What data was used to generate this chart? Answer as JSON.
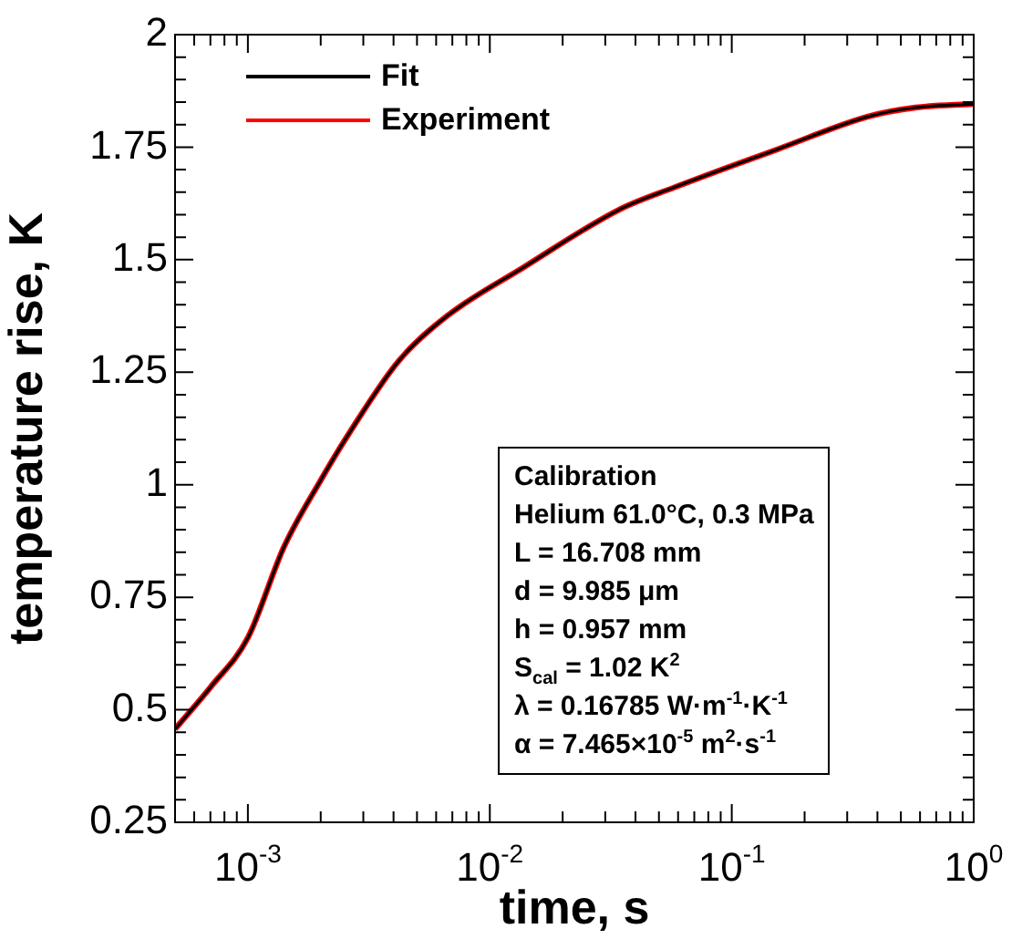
{
  "chart_data": {
    "type": "line",
    "xlabel": "time, s",
    "ylabel": "temperature rise, K",
    "log": "x",
    "grid": false,
    "legend": "top left",
    "line_style": "solid",
    "marker": "none",
    "x": [
      0.0005,
      0.0007,
      0.001,
      0.00141,
      0.002,
      0.00264,
      0.0042,
      0.0067,
      0.0137,
      0.0342,
      0.0575,
      0.154,
      0.366,
      0.574,
      1
    ],
    "series": [
      {
        "name": "Fit",
        "color": "#000000",
        "values": [
          0.457,
          0.55,
          0.66,
          0.862,
          1.01,
          1.117,
          1.275,
          1.376,
          1.482,
          1.611,
          1.66,
          1.745,
          1.818,
          1.838,
          1.846
        ]
      },
      {
        "name": "Experiment",
        "color": "#ff0000",
        "values": [
          0.457,
          0.55,
          0.66,
          0.862,
          1.01,
          1.117,
          1.275,
          1.376,
          1.482,
          1.611,
          1.66,
          1.745,
          1.818,
          1.838,
          1.846
        ]
      }
    ],
    "xlim": [
      0.0005,
      1
    ],
    "xticks": [
      {
        "value": 0.0006,
        "label": null
      },
      {
        "value": 0.0007,
        "label": null
      },
      {
        "value": 0.0008,
        "label": null
      },
      {
        "value": 0.0009,
        "label": null
      },
      {
        "value": 0.001,
        "label": "10$^{-3}$"
      },
      {
        "value": 0.002,
        "label": null
      },
      {
        "value": 0.003,
        "label": null
      },
      {
        "value": 0.004,
        "label": null
      },
      {
        "value": 0.005,
        "label": null
      },
      {
        "value": 0.006,
        "label": null
      },
      {
        "value": 0.007,
        "label": null
      },
      {
        "value": 0.008,
        "label": null
      },
      {
        "value": 0.009,
        "label": null
      },
      {
        "value": 0.01,
        "label": "10$^{-2}$"
      },
      {
        "value": 0.02,
        "label": null
      },
      {
        "value": 0.03,
        "label": null
      },
      {
        "value": 0.04,
        "label": null
      },
      {
        "value": 0.05,
        "label": null
      },
      {
        "value": 0.06,
        "label": null
      },
      {
        "value": 0.07,
        "label": null
      },
      {
        "value": 0.08,
        "label": null
      },
      {
        "value": 0.09,
        "label": null
      },
      {
        "value": 0.1,
        "label": "10$^{-1}$"
      },
      {
        "value": 0.2,
        "label": null
      },
      {
        "value": 0.3,
        "label": null
      },
      {
        "value": 0.4,
        "label": null
      },
      {
        "value": 0.5,
        "label": null
      },
      {
        "value": 0.6,
        "label": null
      },
      {
        "value": 0.7,
        "label": null
      },
      {
        "value": 0.8,
        "label": null
      },
      {
        "value": 0.9,
        "label": null
      },
      {
        "value": 1,
        "label": "10$^{0}$"
      }
    ],
    "ylim": [
      0.25,
      2
    ],
    "yticks": [
      0.25,
      {
        "value": 0.3,
        "label": null
      },
      {
        "value": 0.35,
        "label": null
      },
      {
        "value": 0.4,
        "label": null
      },
      {
        "value": 0.45,
        "label": null
      },
      0.5,
      {
        "value": 0.55,
        "label": null
      },
      {
        "value": 0.6,
        "label": null
      },
      {
        "value": 0.65,
        "label": null
      },
      {
        "value": 0.7,
        "label": null
      },
      0.75,
      {
        "value": 0.8,
        "label": null
      },
      {
        "value": 0.85,
        "label": null
      },
      {
        "value": 0.9,
        "label": null
      },
      {
        "value": 0.95,
        "label": null
      },
      1,
      {
        "value": 1.05,
        "label": null
      },
      {
        "value": 1.1,
        "label": null
      },
      {
        "value": 1.15,
        "label": null
      },
      {
        "value": 1.2,
        "label": null
      },
      1.25,
      {
        "value": 1.3,
        "label": null
      },
      {
        "value": 1.35,
        "label": null
      },
      {
        "value": 1.4,
        "label": null
      },
      {
        "value": 1.45,
        "label": null
      },
      1.5,
      {
        "value": 1.55,
        "label": null
      },
      {
        "value": 1.6,
        "label": null
      },
      {
        "value": 1.65,
        "label": null
      },
      {
        "value": 1.7,
        "label": null
      },
      1.75,
      {
        "value": 1.8,
        "label": null
      },
      {
        "value": 1.85,
        "label": null
      },
      {
        "value": 1.9,
        "label": null
      },
      {
        "value": 1.95,
        "label": null
      },
      2
    ],
    "annotations": [
      "Calibration",
      "Helium 61.0°C, 0.3 MPa",
      "L = 16.708 mm",
      "d = 9.985 μm",
      "h = 0.957 mm",
      "S$_{cal}$ = 1.02 K$^{2}$",
      "λ = 0.16785 W·m$^{-1}$·K$^{-1}$",
      "α = 7.465×10$^{-5}$ m$^{2}$·s$^{-1}$"
    ]
  }
}
